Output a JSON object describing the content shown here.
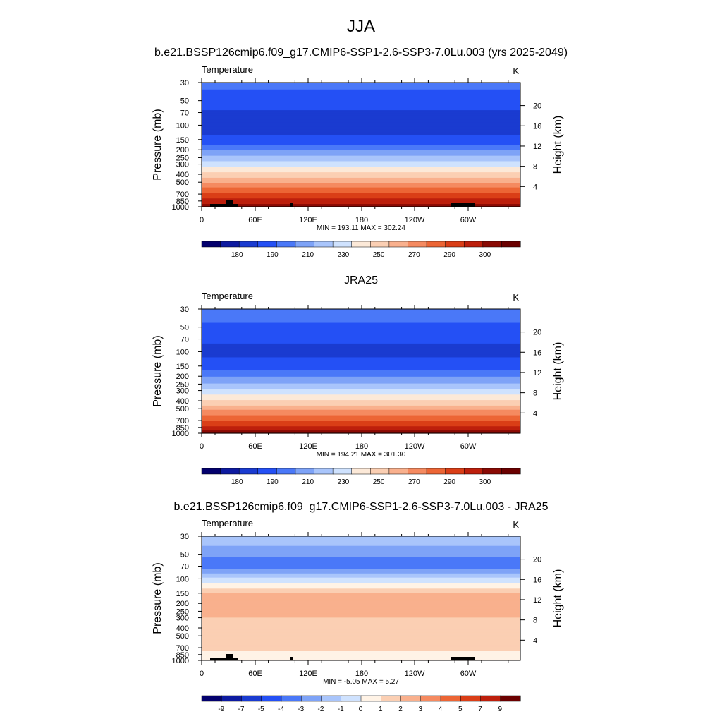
{
  "title": "JJA",
  "tick_labels": {
    "lon": [
      "0",
      "60E",
      "120E",
      "180",
      "120W",
      "60W"
    ],
    "pressure": [
      "30",
      "50",
      "70",
      "100",
      "150",
      "200",
      "250",
      "300",
      "400",
      "500",
      "700",
      "850",
      "1000"
    ],
    "height": [
      "20",
      "16",
      "12",
      "8",
      "4"
    ]
  },
  "chart_data": [
    {
      "type": "heatmap",
      "title": "b.e21.BSSP126cmip6.f09_g17.CMIP6-SSP1-2.6-SSP3-7.0Lu.003 (yrs 2025-2049)",
      "variable": "Temperature",
      "units": "K",
      "xlabel": "",
      "ylabel": "Pressure (mb)",
      "ylabel_right": "Height (km)",
      "stats": "MIN = 193.11  MAX = 302.24",
      "colorbar_labels": [
        "180",
        "190",
        "210",
        "230",
        "250",
        "270",
        "290",
        "300"
      ],
      "pressure_levels": [
        30,
        50,
        70,
        100,
        150,
        200,
        250,
        300,
        400,
        500,
        700,
        850,
        1000
      ],
      "zonal_mean_temperature": [
        208,
        202,
        197,
        194,
        200,
        212,
        223,
        232,
        246,
        258,
        276,
        285,
        296
      ],
      "min": 193.11,
      "max": 302.24
    },
    {
      "type": "heatmap",
      "title": "JRA25",
      "variable": "Temperature",
      "units": "K",
      "xlabel": "",
      "ylabel": "Pressure (mb)",
      "ylabel_right": "Height (km)",
      "stats": "MIN = 194.21  MAX = 301.30",
      "colorbar_labels": [
        "180",
        "190",
        "210",
        "230",
        "250",
        "270",
        "290",
        "300"
      ],
      "pressure_levels": [
        30,
        50,
        70,
        100,
        150,
        200,
        250,
        300,
        400,
        500,
        700,
        850,
        1000
      ],
      "zonal_mean_temperature": [
        210,
        204,
        199,
        196,
        201,
        212,
        222,
        231,
        245,
        257,
        275,
        284,
        295
      ],
      "min": 194.21,
      "max": 301.3
    },
    {
      "type": "heatmap",
      "title": "b.e21.BSSP126cmip6.f09_g17.CMIP6-SSP1-2.6-SSP3-7.0Lu.003 - JRA25",
      "variable": "Temperature",
      "units": "K",
      "xlabel": "",
      "ylabel": "Pressure (mb)",
      "ylabel_right": "Height (km)",
      "stats": "MIN =  -5.05  MAX =   5.27",
      "colorbar_labels": [
        "-9",
        "-7",
        "-5",
        "-4",
        "-3",
        "-2",
        "-1",
        "0",
        "1",
        "2",
        "3",
        "4",
        "5",
        "7",
        "9"
      ],
      "pressure_levels": [
        30,
        50,
        70,
        100,
        150,
        200,
        250,
        300,
        400,
        500,
        700,
        850,
        1000
      ],
      "zonal_mean_difference": [
        -1.5,
        -3.5,
        -4.5,
        -1.0,
        2.5,
        3.5,
        3.0,
        2.5,
        2.0,
        2.0,
        1.5,
        1.0,
        0.5
      ],
      "min": -5.05,
      "max": 5.27
    }
  ],
  "colors": {
    "temperature_scale": [
      "#03006d",
      "#0d1aa0",
      "#1a3bd0",
      "#2450f5",
      "#4a78f8",
      "#7ea3f7",
      "#a9c5fb",
      "#cfe2fe",
      "#fce9d8",
      "#fbcfb3",
      "#f9b08d",
      "#f58a60",
      "#ec6535",
      "#da3e17",
      "#bd1f0c",
      "#8a0a04",
      "#6b0000"
    ],
    "diff_scale": [
      "#03006d",
      "#0d1aa0",
      "#1a3bd0",
      "#2450f5",
      "#4a78f8",
      "#7ea3f7",
      "#a9c5fb",
      "#cfe2fe",
      "#fff3e6",
      "#fbcfb3",
      "#f9b08d",
      "#f58a60",
      "#ec6535",
      "#da3e17",
      "#bd1f0c",
      "#6b0000"
    ]
  }
}
